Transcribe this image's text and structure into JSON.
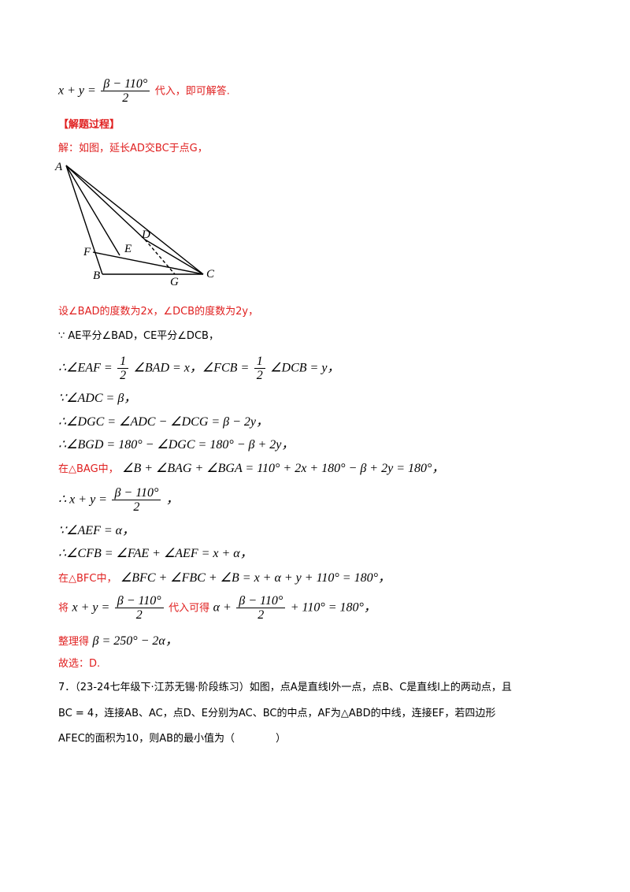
{
  "lines": {
    "l0_a": "x + y =",
    "l0_num": "β − 110°",
    "l0_den": "2",
    "l0_b": "代入，即可解答.",
    "heading": "【解题过程】",
    "l1": "解：如图，延长AD交BC于点G，",
    "l2": "设∠BAD的度数为2x，∠DCB的度数为2y，",
    "l3": "∵ AE平分∠BAD，CE平分∠DCB，",
    "l4_a": "∴∠EAF =",
    "l4_num1": "1",
    "l4_den1": "2",
    "l4_b": "∠BAD = x，∠FCB =",
    "l4_num2": "1",
    "l4_den2": "2",
    "l4_c": "∠DCB = y，",
    "l5": "∵∠ADC = β，",
    "l6": "∴∠DGC = ∠ADC − ∠DCG = β − 2y，",
    "l7": "∴∠BGD = 180° − ∠DGC = 180° − β + 2y，",
    "l8_a": "在△BAG中，",
    "l8_b": "∠B + ∠BAG + ∠BGA = 110° + 2x + 180° − β + 2y = 180°，",
    "l9_a": "∴ x + y =",
    "l9_num": "β − 110°",
    "l9_den": "2",
    "l9_b": "，",
    "l10": "∵∠AEF = α，",
    "l11": "∴∠CFB = ∠FAE + ∠AEF = x + α，",
    "l12_a": "在△BFC中，",
    "l12_b": "∠BFC + ∠FBC + ∠B = x + α + y + 110° = 180°，",
    "l13_a": "将",
    "l13_b": "x + y =",
    "l13_num1": "β − 110°",
    "l13_den1": "2",
    "l13_c": "代入可得",
    "l13_d": "α +",
    "l13_num2": "β − 110°",
    "l13_den2": "2",
    "l13_e": "+ 110° = 180°，",
    "l14_a": "整理得",
    "l14_b": "β = 250° − 2α，",
    "l15": "故选：D.",
    "q7_line1": "7．（23-24七年级下·江苏无锡·阶段练习）如图，点A是直线l外一点，点B、C是直线l上的两动点，且",
    "q7_line2": "BC = 4，连接AB、AC，点D、E分别为AC、BC的中点，AF为△ABD的中线，连接EF，若四边形",
    "q7_line3": "AFEC的面积为10，则AB的最小值为（　　　　）"
  },
  "figure": {
    "labels": {
      "A": "A",
      "B": "B",
      "C": "C",
      "D": "D",
      "E": "E",
      "F": "F",
      "G": "G"
    }
  },
  "colors": {
    "accent": "#e02020",
    "text": "#000000"
  }
}
